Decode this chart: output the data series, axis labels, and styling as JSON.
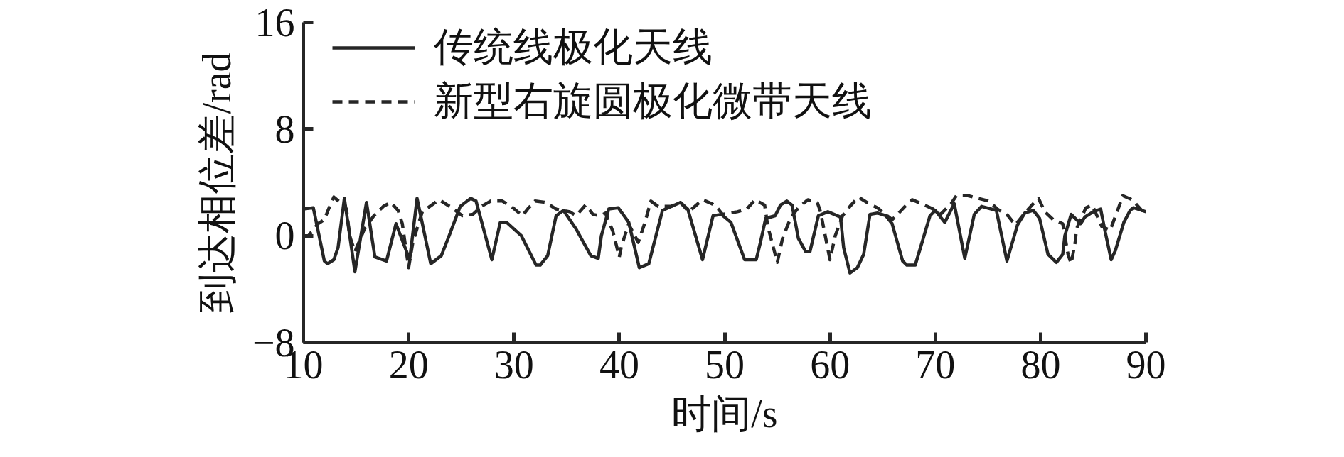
{
  "chart_data": {
    "type": "line",
    "xlabel": "时间/s",
    "ylabel": "到达相位差/rad",
    "xlim": [
      10,
      90
    ],
    "ylim": [
      -8,
      16
    ],
    "xticks": [
      10,
      20,
      30,
      40,
      50,
      60,
      70,
      80,
      90
    ],
    "yticks": [
      16,
      8,
      0,
      {
        "value": -8,
        "label": "−8"
      }
    ],
    "legend": "top left",
    "series": [
      {
        "name": "传统线极化天线",
        "color": "#262626",
        "line_style": "solid",
        "x": [
          10,
          10.95,
          12,
          12.3,
          12.9,
          13.3,
          13.9,
          14.9,
          16,
          16.8,
          17.9,
          18.8,
          20.1,
          20.8,
          22.1,
          23.1,
          23.8,
          24.9,
          25.9,
          26.4,
          27.9,
          28.7,
          29.3,
          30.7,
          32.1,
          32.5,
          33.2,
          34,
          34.7,
          35.9,
          37.3,
          38,
          38.3,
          39,
          39.9,
          40.9,
          41.9,
          42.8,
          44.1,
          45.8,
          46.5,
          47.9,
          48.9,
          49.7,
          50.6,
          51.9,
          53,
          53.4,
          53.9,
          54.8,
          55.3,
          55.9,
          56.4,
          57,
          57.7,
          58.1,
          58.9,
          59.8,
          61,
          61.3,
          61.9,
          62.6,
          63.2,
          63.8,
          64.5,
          65.3,
          65.9,
          66.9,
          67.3,
          68.1,
          69.5,
          70,
          70.9,
          71.8,
          72.8,
          73.7,
          74.4,
          75.8,
          76.8,
          77.8,
          78.5,
          79.3,
          79.9,
          80.7,
          81.5,
          82.1,
          82.3,
          82.9,
          83.8,
          84.2,
          85,
          85.7,
          86.1,
          86.7,
          87.1,
          87.9,
          88.5,
          88.8,
          89.6,
          90
        ],
        "values": [
          2.0,
          2.1,
          -1.9,
          -2.1,
          -1.8,
          -0.9,
          2.8,
          -2.7,
          2.5,
          -1.6,
          -1.9,
          0.9,
          -1.8,
          2.8,
          -2.1,
          -1.5,
          -0.1,
          2.2,
          2.8,
          2.6,
          -1.8,
          1.0,
          1.0,
          0.0,
          -2.2,
          -2.2,
          -1.5,
          1.5,
          1.9,
          0.5,
          -1.5,
          -1.7,
          0.0,
          2.0,
          2.1,
          1.0,
          -2.4,
          -2.1,
          1.9,
          2.5,
          2.0,
          -1.8,
          1.5,
          1.6,
          1.0,
          -1.8,
          -1.8,
          -0.5,
          1.3,
          1.5,
          2.3,
          2.6,
          2.3,
          -0.2,
          -1.2,
          -1.2,
          1.5,
          1.8,
          1.4,
          -0.9,
          -2.8,
          -2.4,
          -1.4,
          1.6,
          1.7,
          1.5,
          0.9,
          -1.9,
          -2.2,
          -2.2,
          1.5,
          1.9,
          1.0,
          2.4,
          -1.7,
          1.6,
          2.2,
          1.9,
          -1.9,
          0.8,
          1.7,
          1.9,
          1.3,
          -1.4,
          -2.0,
          -1.4,
          0.0,
          1.6,
          0.9,
          1.4,
          1.8,
          2.0,
          0.4,
          -1.8,
          -1.1,
          1.0,
          1.9,
          2.1,
          1.9,
          1.8
        ]
      },
      {
        "name": "新型右旋圆极化微带天线",
        "color": "#262626",
        "line_style": "dashed",
        "x": [
          10,
          10.5,
          11.4,
          12,
          12.4,
          12.9,
          13.5,
          14.1,
          14.4,
          14.9,
          15.8,
          16.7,
          17.6,
          18.3,
          19,
          19.4,
          20,
          20.4,
          20.9,
          21.3,
          22.9,
          24.1,
          25.1,
          26.1,
          26.9,
          27.8,
          28.9,
          29.9,
          30.8,
          31.3,
          32,
          33,
          34,
          35.3,
          35.9,
          36.8,
          37.5,
          38.2,
          38.7,
          39.4,
          40,
          40.2,
          40.9,
          41,
          41.8,
          42.4,
          43,
          43.7,
          44.9,
          45.8,
          46.6,
          47.9,
          48.8,
          49.4,
          49.8,
          51.2,
          52.1,
          52.9,
          53.8,
          54.1,
          55,
          55.5,
          56.3,
          57,
          57.9,
          58.8,
          59.1,
          60,
          60.5,
          61.2,
          61.9,
          62.7,
          63.5,
          64.5,
          65.9,
          66.3,
          67,
          67.8,
          68.7,
          69.8,
          70.5,
          71.5,
          72,
          73.1,
          74.1,
          75.1,
          75.9,
          76.9,
          77.6,
          78.5,
          79.3,
          79.8,
          80.4,
          81.2,
          82.1,
          82.3,
          82.6,
          82.9,
          83.3,
          83.4,
          84.3,
          84.9,
          85.8,
          86.6,
          87.4,
          87.8,
          88.7,
          89.6,
          90
        ],
        "values": [
          0.0,
          0.0,
          0.9,
          1.2,
          2.0,
          2.9,
          2.5,
          2.0,
          0.0,
          -1.2,
          0.5,
          1.5,
          2.2,
          2.5,
          1.9,
          0.9,
          -2.4,
          -0.5,
          0.8,
          1.8,
          2.7,
          2.1,
          1.5,
          1.6,
          2.2,
          2.6,
          2.6,
          2.1,
          1.5,
          2.0,
          2.6,
          2.5,
          2.0,
          1.8,
          1.5,
          2.3,
          1.6,
          1.5,
          1.7,
          0.3,
          -1.6,
          -0.8,
          0.9,
          0.7,
          -0.5,
          0.9,
          2.6,
          2.2,
          2.2,
          2.5,
          1.8,
          2.7,
          2.4,
          2.0,
          1.6,
          1.8,
          2.0,
          2.7,
          2.3,
          0.7,
          -2.0,
          -0.2,
          1.4,
          2.1,
          2.7,
          2.5,
          1.8,
          -1.8,
          0.0,
          1.5,
          2.2,
          2.9,
          2.5,
          2.1,
          1.2,
          1.5,
          2.1,
          2.7,
          2.4,
          2.0,
          1.6,
          2.4,
          3.0,
          3.0,
          2.8,
          2.6,
          2.0,
          1.5,
          0.8,
          1.7,
          2.4,
          2.8,
          1.8,
          1.2,
          0.9,
          0.0,
          -1.4,
          -2.1,
          -0.4,
          0.5,
          2.1,
          2.3,
          0.7,
          0.4,
          2.1,
          3.0,
          2.7,
          1.9,
          1.8
        ]
      }
    ]
  }
}
